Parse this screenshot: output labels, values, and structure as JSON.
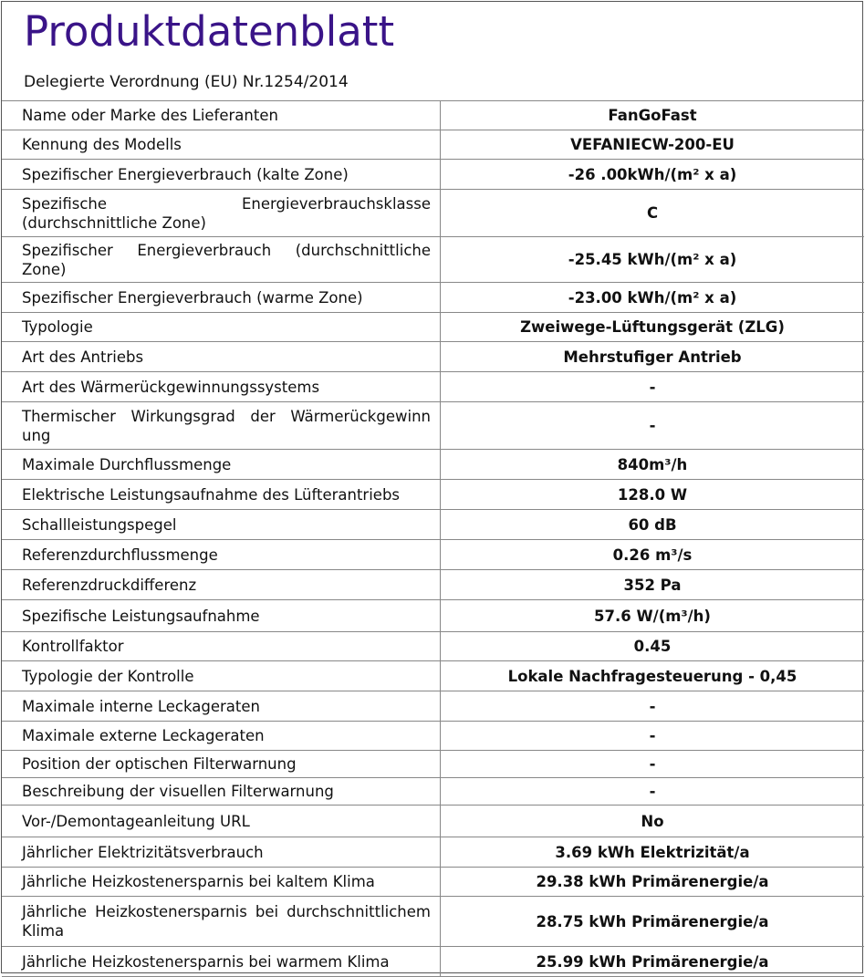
{
  "header": {
    "title": "Produktdatenblatt",
    "subtitle": "Delegierte Verordnung (EU) Nr.1254/2014",
    "title_color": "#3a1488"
  },
  "rows": [
    {
      "label": "Name oder Marke des Lieferanten",
      "value": "FanGoFast"
    },
    {
      "label": "Kennung des Modells",
      "value": "VEFANIECW-200-EU"
    },
    {
      "label": "Spezifischer Energieverbrauch (kalte Zone)",
      "value": "-26 .00kWh/(m² x a)"
    },
    {
      "label": "Spezifische Energieverbrauchsklasse (durchschnittliche Zone)",
      "value": "C"
    },
    {
      "label": "Spezifischer Energieverbrauch (durchschnittliche Zone)",
      "value": "-25.45 kWh/(m² x a)"
    },
    {
      "label": "Spezifischer Energieverbrauch (warme Zone)",
      "value": "-23.00 kWh/(m² x a)"
    },
    {
      "label": "Typologie",
      "value": "Zweiwege-Lüftungsgerät (ZLG)"
    },
    {
      "label": "Art des Antriebs",
      "value": "Mehrstufiger Antrieb"
    },
    {
      "label": "Art des Wärmerückgewinnungssystems",
      "value": "-"
    },
    {
      "label": "Thermischer Wirkungsgrad der Wärmerückgewinn ung",
      "value": "-"
    },
    {
      "label": "Maximale Durchflussmenge",
      "value": "840m³/h"
    },
    {
      "label": "Elektrische Leistungsaufnahme des Lüfterantriebs",
      "value": "128.0 W"
    },
    {
      "label": "Schallleistungspegel",
      "value": "60 dB"
    },
    {
      "label": "Referenzdurchflussmenge",
      "value": "0.26 m³/s"
    },
    {
      "label": "Referenzdruckdifferenz",
      "value": "352 Pa"
    },
    {
      "label": "Spezifische Leistungsaufnahme",
      "value": "57.6 W/(m³/h)"
    },
    {
      "label": "Kontrollfaktor",
      "value": "0.45"
    },
    {
      "label": "Typologie der Kontrolle",
      "value": "Lokale Nachfragesteuerung - 0,45"
    },
    {
      "label": "Maximale interne Leckageraten",
      "value": "-"
    },
    {
      "label": "Maximale externe Leckageraten",
      "value": "-"
    },
    {
      "label": "Position der optischen Filterwarnung",
      "value": "-"
    },
    {
      "label": "Beschreibung der visuellen Filterwarnung",
      "value": "-"
    },
    {
      "label": "Vor-/Demontageanleitung URL",
      "value": "No"
    },
    {
      "label": "Jährlicher Elektrizitätsverbrauch",
      "value": "3.69 kWh Elektrizität/a"
    },
    {
      "label": "Jährliche Heizkostenersparnis bei kaltem Klima",
      "value": "29.38 kWh Primärenergie/a"
    },
    {
      "label": "Jährliche Heizkostenersparnis bei durchschnittlichem Klima",
      "value": "28.75 kWh Primärenergie/a"
    },
    {
      "label": "Jährliche Heizkostenersparnis bei warmem Klima",
      "value": "25.99 kWh Primärenergie/a"
    }
  ]
}
